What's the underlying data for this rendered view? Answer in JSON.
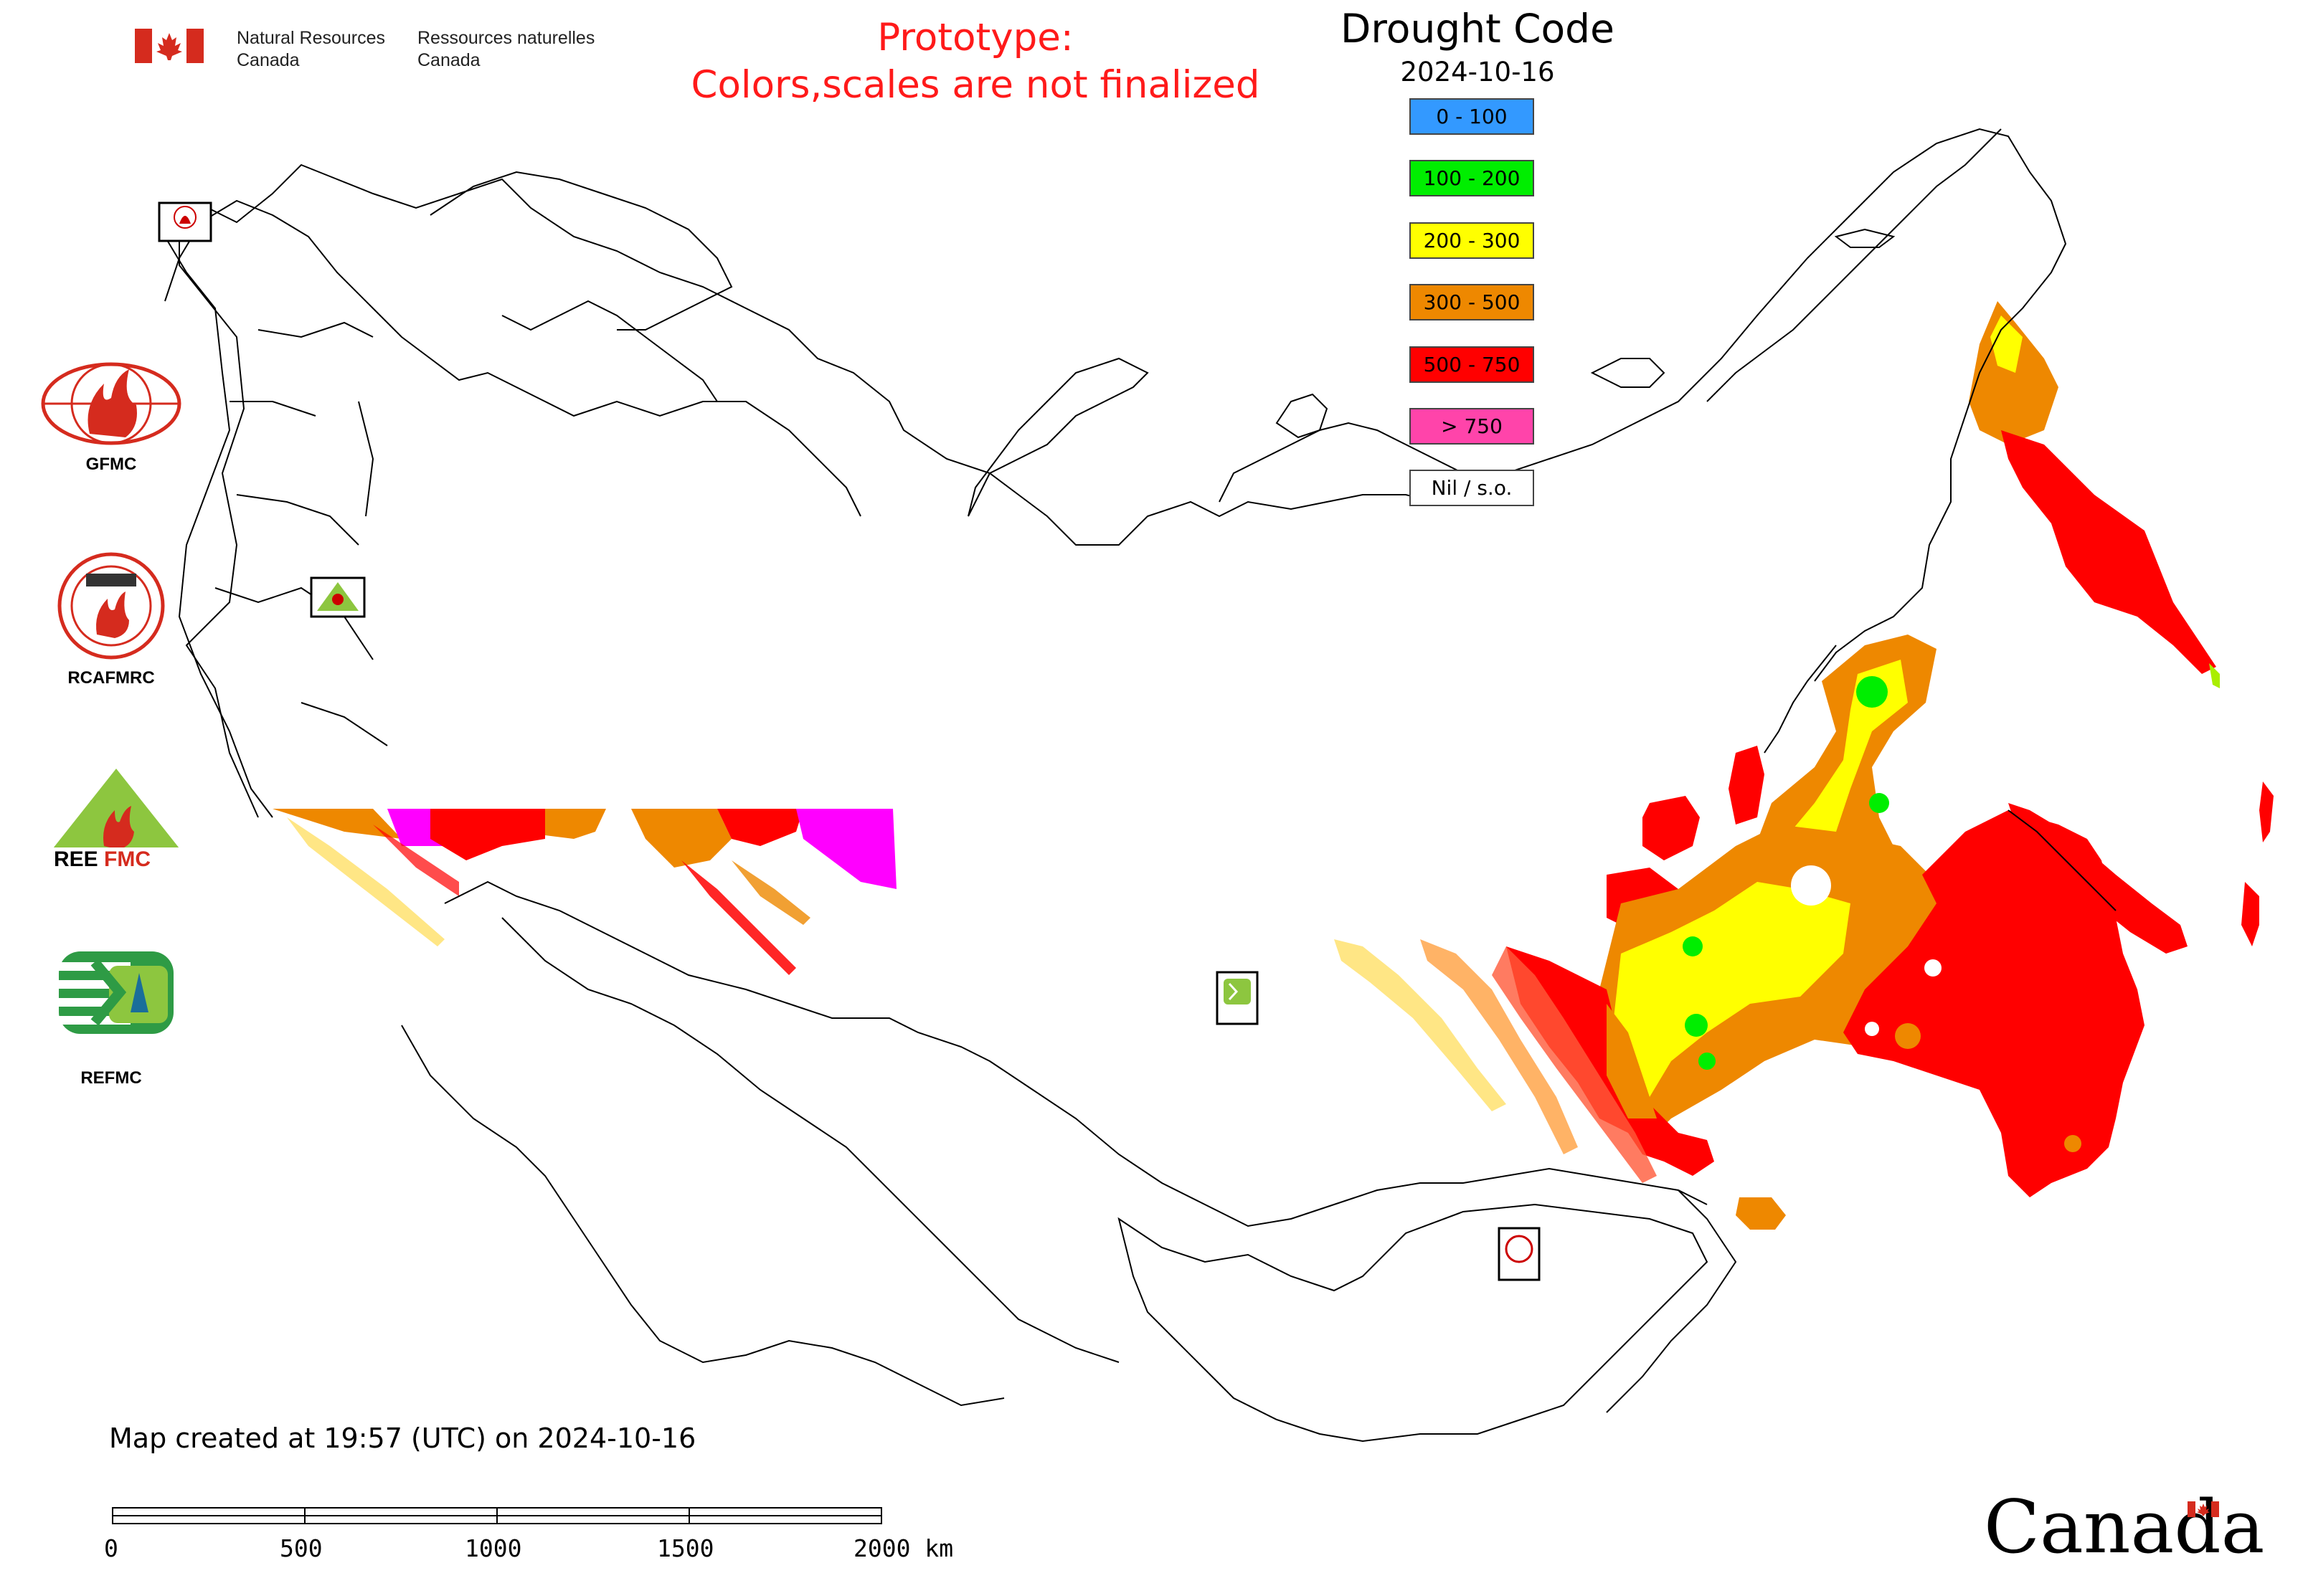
{
  "header": {
    "org_en_line1": "Natural Resources",
    "org_en_line2": "Canada",
    "org_fr_line1": "Ressources naturelles",
    "org_fr_line2": "Canada",
    "notice_line1": "Prototype:",
    "notice_line2": "Colors,scales are not finalized",
    "notice_color": "#ff1a1a"
  },
  "map": {
    "title": "Drought Code",
    "date": "2024-10-16",
    "created_text": "Map created at 19:57 (UTC) on 2024-10-16"
  },
  "legend": [
    {
      "label": "0 - 100",
      "color": "#3399ff"
    },
    {
      "label": "100 - 200",
      "color": "#00ee00"
    },
    {
      "label": "200 - 300",
      "color": "#ffff00"
    },
    {
      "label": "300 - 500",
      "color": "#ee8800"
    },
    {
      "label": "500 - 750",
      "color": "#ff0000"
    },
    {
      "label": "> 750",
      "color": "#ff44aa"
    },
    {
      "label": "Nil / s.o.",
      "color": "#ffffff"
    }
  ],
  "logos": {
    "gfmc": "GFMC",
    "rcafmrc": "RCAFMRC",
    "reefmc": "REEFMC",
    "refmc": "REFMC"
  },
  "scale_bar": {
    "labels": [
      "0",
      "500",
      "1000",
      "1500",
      "2000 km"
    ]
  },
  "footer": {
    "wordmark": "Canada"
  }
}
